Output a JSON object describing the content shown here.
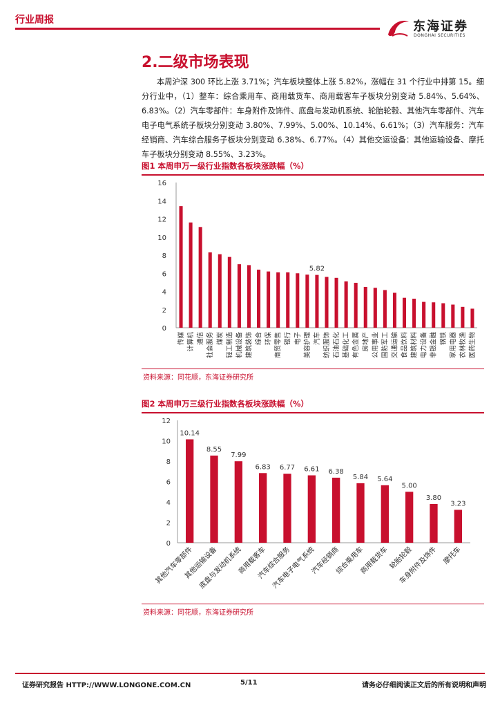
{
  "header": {
    "title": "行业周报",
    "logo_cn": "东海证券",
    "logo_en": "DONGHAI SECURITIES"
  },
  "section": {
    "title": "2.二级市场表现",
    "paragraph": "本周沪深 300 环比上涨 3.71%；汽车板块整体上涨 5.82%，涨幅在 31 个行业中排第 15。细分行业中，（1）整车：综合乘用车、商用载货车、商用载客车子板块分别变动 5.84%、5.64%、6.83%。（2）汽车零部件：车身附件及饰件、底盘与发动机系统、轮胎轮毂、其他汽车零部件、汽车电子电气系统子板块分别变动 3.80%、7.99%、5.00%、10.14%、6.61%；（3）汽车服务：汽车经销商、汽车综合服务子板块分别变动 6.38%、6.77%。（4）其他交运设备：其他运输设备、摩托车子板块分别变动 8.55%、3.23%。"
  },
  "figure1": {
    "title": "图1  本周申万一级行业指数各板块涨跌幅（%）",
    "source": "资料来源：同花顺，东海证券研究所"
  },
  "figure2": {
    "title": "图2  本周申万三级行业指数各板块涨跌幅（%）",
    "source": "资料来源：同花顺，东海证券研究所"
  },
  "chart_data": [
    {
      "type": "bar",
      "title": "本周申万一级行业指数各板块涨跌幅（%）",
      "categories": [
        "传媒",
        "计算机",
        "通信",
        "社会服务",
        "煤炭",
        "轻工制造",
        "机械设备",
        "建筑装饰",
        "综合",
        "环保",
        "商贸零售",
        "银行",
        "电子",
        "美容护理",
        "汽车",
        "纺织服饰",
        "石油石化",
        "基础化工",
        "有色金属",
        "房地产",
        "公用事业",
        "国防军工",
        "交通运输",
        "食品饮料",
        "建筑材料",
        "电力设备",
        "非银金融",
        "钢铁",
        "家用电器",
        "农林牧渔",
        "医药生物"
      ],
      "values": [
        13.4,
        11.6,
        11.1,
        8.3,
        8.1,
        7.8,
        7.0,
        6.9,
        6.4,
        6.2,
        6.1,
        6.1,
        6.0,
        5.85,
        5.82,
        5.6,
        5.5,
        5.1,
        4.95,
        4.5,
        4.4,
        4.15,
        3.85,
        3.3,
        3.2,
        2.85,
        2.8,
        2.7,
        2.55,
        2.3,
        2.1
      ],
      "data_labels": [
        {
          "category": "汽车",
          "text": "5.82"
        }
      ],
      "ylim": [
        0,
        16
      ],
      "yticks": [
        0,
        2,
        4,
        6,
        8,
        10,
        12,
        14,
        16
      ],
      "color": "#c8102e",
      "grid": false
    },
    {
      "type": "bar",
      "title": "本周申万三级行业指数各板块涨跌幅（%）",
      "categories": [
        "其他汽车零部件",
        "其他运输设备",
        "底盘与发动机系统",
        "商用载客车",
        "汽车综合服务",
        "汽车电子电气系统",
        "汽车经销商",
        "综合乘用车",
        "商用载货车",
        "轮胎轮毂",
        "车身附件及饰件",
        "摩托车"
      ],
      "values": [
        10.14,
        8.55,
        7.99,
        6.83,
        6.77,
        6.61,
        6.38,
        5.84,
        5.64,
        5.0,
        3.8,
        3.23
      ],
      "value_labels": [
        "10.14",
        "8.55",
        "7.99",
        "6.83",
        "6.77",
        "6.61",
        "6.38",
        "5.84",
        "5.64",
        "5.00",
        "3.80",
        "3.23"
      ],
      "ylim": [
        0,
        12
      ],
      "yticks": [
        0,
        2,
        4,
        6,
        8,
        10,
        12
      ],
      "color": "#c8102e",
      "grid": false
    }
  ],
  "footer": {
    "left": "证券研究报告    HTTP://WWW.LONGONE.COM.CN",
    "page": "5/11",
    "right": "请务必仔细阅读正文后的所有说明和声明"
  },
  "colors": {
    "accent": "#c8102e",
    "text": "#222222"
  }
}
